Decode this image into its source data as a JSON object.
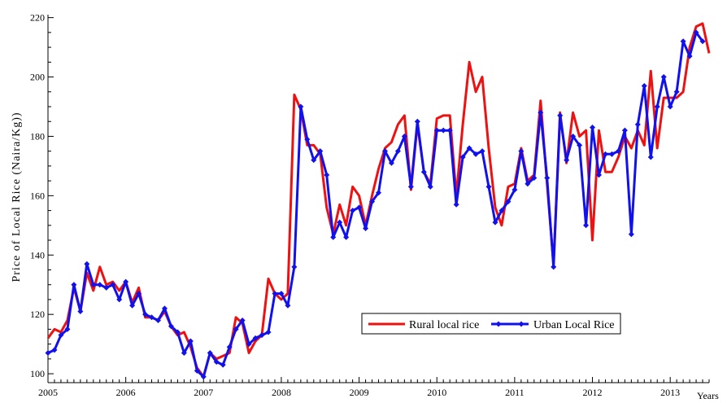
{
  "chart_data": {
    "type": "line",
    "xlabel": "Years",
    "ylabel": "Price of Local Rice (Naira/Kg))",
    "xlim": [
      2005,
      2013.5
    ],
    "ylim": [
      97,
      221
    ],
    "x_ticks": [
      2005,
      2006,
      2007,
      2008,
      2009,
      2010,
      2011,
      2012,
      2013
    ],
    "x_tick_labels": [
      "2005",
      "2006",
      "2007",
      "2008",
      "2009",
      "2010",
      "2011",
      "2012",
      "2013"
    ],
    "y_ticks": [
      100,
      120,
      140,
      160,
      180,
      200,
      220
    ],
    "y_tick_labels": [
      "100",
      "120",
      "140",
      "160",
      "180",
      "200",
      "220"
    ],
    "grid": false,
    "legend_position": "bottom-right",
    "x_start_year": 2005,
    "x_step_months": 1,
    "series": [
      {
        "name": "Rural local rice",
        "color": "#ee1111",
        "marker": "none",
        "values": [
          112,
          115,
          114,
          118,
          129,
          121,
          134,
          128,
          136,
          130,
          131,
          128,
          131,
          124,
          129,
          119,
          119,
          118,
          121,
          116,
          113,
          114,
          109,
          102,
          99,
          107,
          105,
          106,
          107,
          119,
          117,
          107,
          111,
          113,
          132,
          127,
          125,
          127,
          194,
          189,
          177,
          177,
          174,
          156,
          147,
          157,
          150,
          163,
          160,
          150,
          160,
          169,
          176,
          178,
          184,
          187,
          162,
          184,
          168,
          164,
          186,
          187,
          187,
          160,
          184,
          205,
          195,
          200,
          176,
          156,
          150,
          163,
          164,
          176,
          165,
          167,
          192,
          164,
          137,
          188,
          171,
          188,
          180,
          182,
          145,
          182,
          168,
          168,
          173,
          180,
          176,
          182,
          177,
          202,
          176,
          193,
          193,
          193,
          195,
          210,
          217,
          218,
          208
        ]
      },
      {
        "name": "Urban Local Rice",
        "color": "#1111ee",
        "marker": "diamond",
        "values": [
          107,
          108,
          113,
          115,
          130,
          121,
          137,
          130,
          130,
          129,
          130,
          125,
          131,
          123,
          127,
          120,
          119,
          118,
          122,
          116,
          114,
          107,
          111,
          101,
          99,
          107,
          104,
          103,
          109,
          115,
          118,
          110,
          112,
          113,
          114,
          127,
          127,
          123,
          136,
          190,
          179,
          172,
          175,
          167,
          146,
          151,
          146,
          155,
          156,
          149,
          158,
          161,
          175,
          171,
          175,
          180,
          163,
          185,
          168,
          163,
          182,
          182,
          182,
          157,
          173,
          176,
          174,
          175,
          163,
          151,
          155,
          158,
          162,
          175,
          164,
          166,
          188,
          166,
          136,
          187,
          172,
          180,
          177,
          150,
          183,
          167,
          174,
          174,
          175,
          182,
          147,
          184,
          197,
          173,
          190,
          200,
          190,
          195,
          212,
          207,
          215,
          212
        ]
      }
    ]
  }
}
